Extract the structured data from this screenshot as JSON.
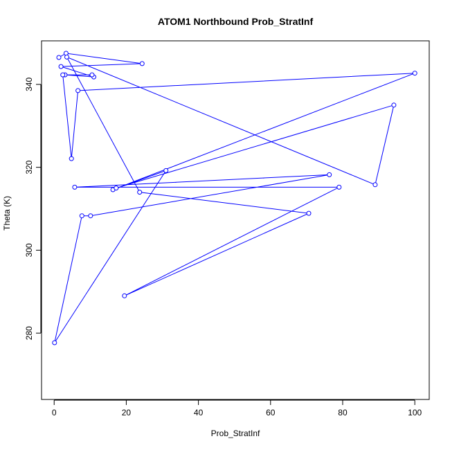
{
  "chart_data": {
    "type": "line",
    "title": "ATOM1 Northbound Prob_StratInf",
    "xlabel": "Prob_StratInf",
    "ylabel": "Theta (K)",
    "xlim": [
      -3.5,
      104
    ],
    "ylim": [
      264,
      350.5
    ],
    "xticks": [
      0,
      20,
      40,
      60,
      80,
      100
    ],
    "yticks": [
      280,
      300,
      320,
      340
    ],
    "grid": false,
    "legend": "none",
    "marker": "open-circle",
    "color": "#0000ff",
    "series": [
      {
        "x": [
          1.3,
          3.3,
          24.4,
          1.9,
          11.0,
          3.0,
          10.5,
          2.4,
          4.8,
          6.6,
          100.0,
          16.3,
          31.0,
          0.1,
          7.7,
          10.1,
          76.3,
          5.7,
          79.0,
          19.5,
          70.6,
          23.7,
          3.5,
          89.0,
          94.2,
          17.2
        ],
        "y": [
          346.5,
          347.5,
          345.0,
          344.3,
          341.8,
          342.3,
          342.3,
          342.3,
          322.1,
          338.5,
          342.7,
          314.6,
          319.2,
          277.7,
          308.3,
          308.3,
          318.2,
          315.2,
          315.2,
          289.0,
          308.9,
          314.0,
          346.6,
          315.8,
          335.0,
          315.0
        ]
      }
    ]
  }
}
